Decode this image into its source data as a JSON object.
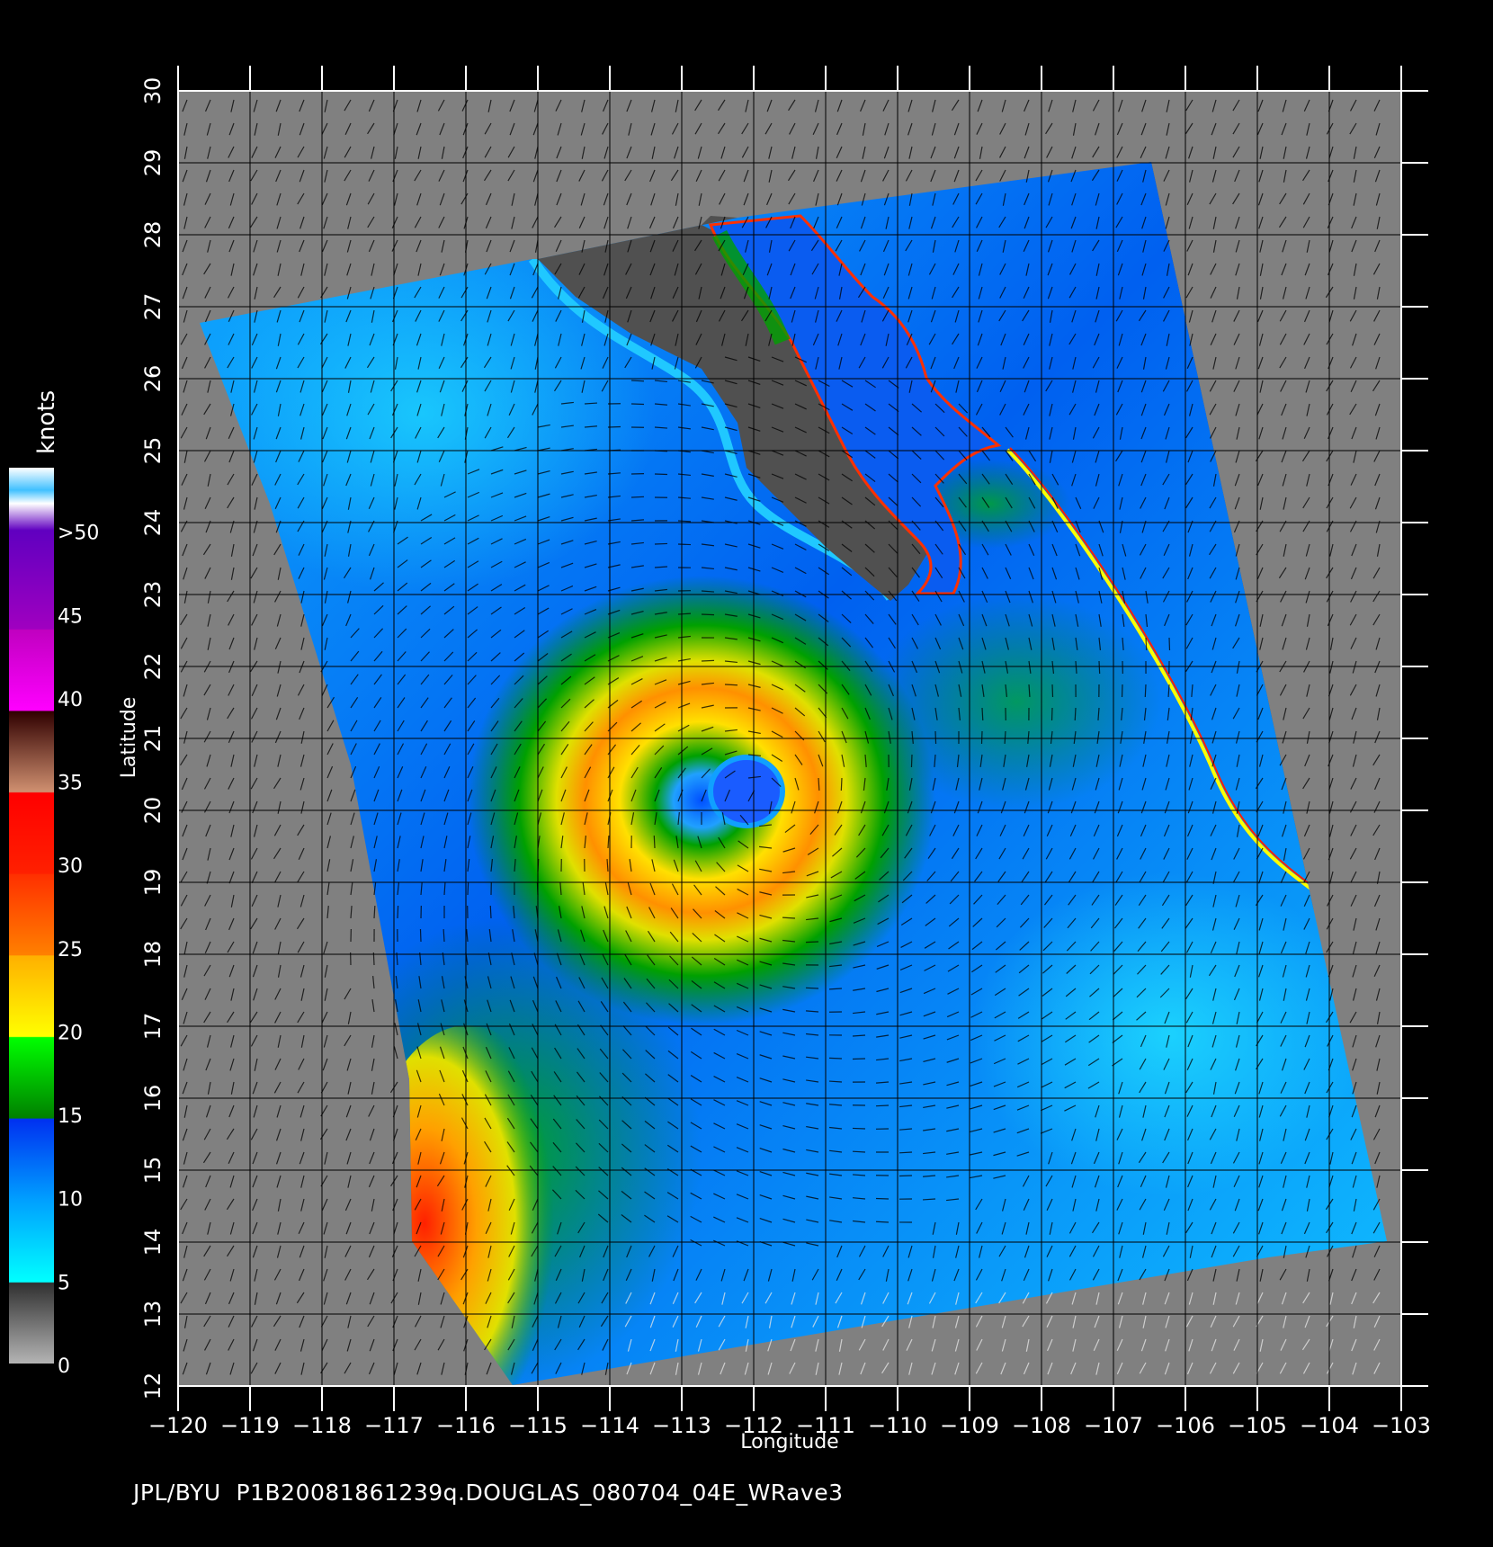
{
  "map": {
    "x_axis": {
      "label": "Longitude",
      "range": [
        -120,
        -103
      ],
      "ticks": [
        "−120",
        "−119",
        "−118",
        "−117",
        "−116",
        "−115",
        "−114",
        "−113",
        "−112",
        "−111",
        "−110",
        "−109",
        "−108",
        "−107",
        "−106",
        "−105",
        "−104",
        "−103"
      ]
    },
    "y_axis": {
      "label": "Latitude",
      "range": [
        12,
        30
      ],
      "ticks": [
        "12",
        "13",
        "14",
        "15",
        "16",
        "17",
        "18",
        "19",
        "20",
        "21",
        "22",
        "23",
        "24",
        "25",
        "26",
        "27",
        "28",
        "29",
        "30"
      ]
    },
    "grid": true,
    "storm_center": {
      "lon": -111.9,
      "lat": 20.1
    }
  },
  "colorbar": {
    "title": "knots",
    "labels": [
      "0",
      "5",
      "10",
      "15",
      "20",
      "25",
      "30",
      "35",
      "40",
      "45",
      ">50"
    ],
    "colors": {
      "0": "#b4b4b4",
      "5": "#00ffff",
      "10": "#0050ff",
      "15": "#008000",
      "20": "#ffff00",
      "25": "#ff9000",
      "30": "#ff0000",
      "35": "#c88050",
      "40": "#ff00ff",
      "50": "#6000c0"
    }
  },
  "footer": {
    "text": "JPL/BYU  P1B20081861239q.DOUGLAS_080704_04E_WRave3"
  },
  "colors": {
    "background": "#000000",
    "no_data": "#808080",
    "land": "#505050",
    "grid": "#000000",
    "axis": "#ffffff"
  }
}
